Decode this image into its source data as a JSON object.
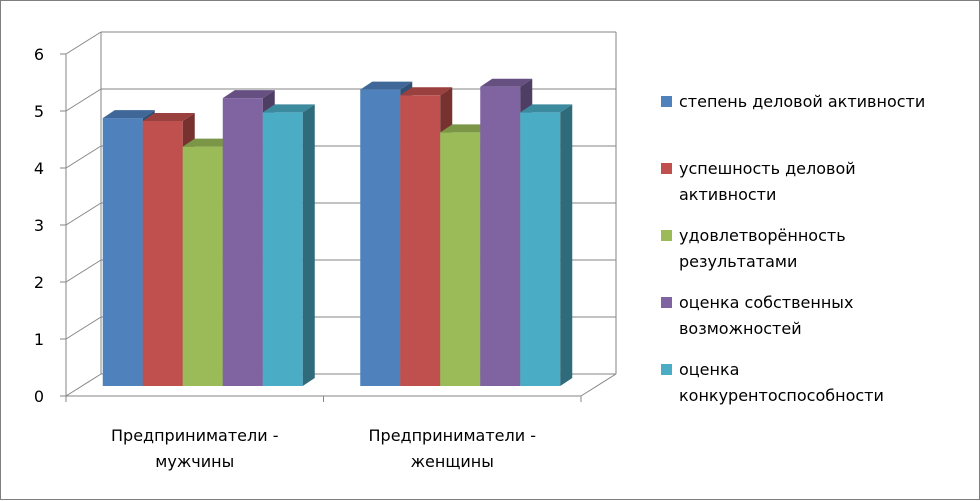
{
  "chart_data": {
    "type": "bar",
    "title": "",
    "xlabel": "",
    "ylabel": "",
    "ylim": [
      0,
      6
    ],
    "yticks": [
      0,
      1,
      2,
      3,
      4,
      5,
      6
    ],
    "grid": true,
    "legend_position": "right",
    "style": "3d-clustered-column",
    "categories": [
      [
        "Предприниматели -",
        "мужчины"
      ],
      [
        "Предприниматели -",
        "женщины"
      ]
    ],
    "series": [
      {
        "name": [
          "степень деловой активности"
        ],
        "values": [
          4.7,
          5.2
        ],
        "color": "#4f81bd"
      },
      {
        "name": [
          "успешность деловой",
          "активности"
        ],
        "values": [
          4.65,
          5.1
        ],
        "color": "#c0504d"
      },
      {
        "name": [
          "удовлетворённость",
          "результатами"
        ],
        "values": [
          4.2,
          4.45
        ],
        "color": "#9bbb59"
      },
      {
        "name": [
          "оценка собственных",
          "возможностей"
        ],
        "values": [
          5.05,
          5.25
        ],
        "color": "#8064a2"
      },
      {
        "name": [
          "оценка",
          "конкурентоспособности"
        ],
        "values": [
          4.8,
          4.8
        ],
        "color": "#4bacc6"
      }
    ]
  }
}
